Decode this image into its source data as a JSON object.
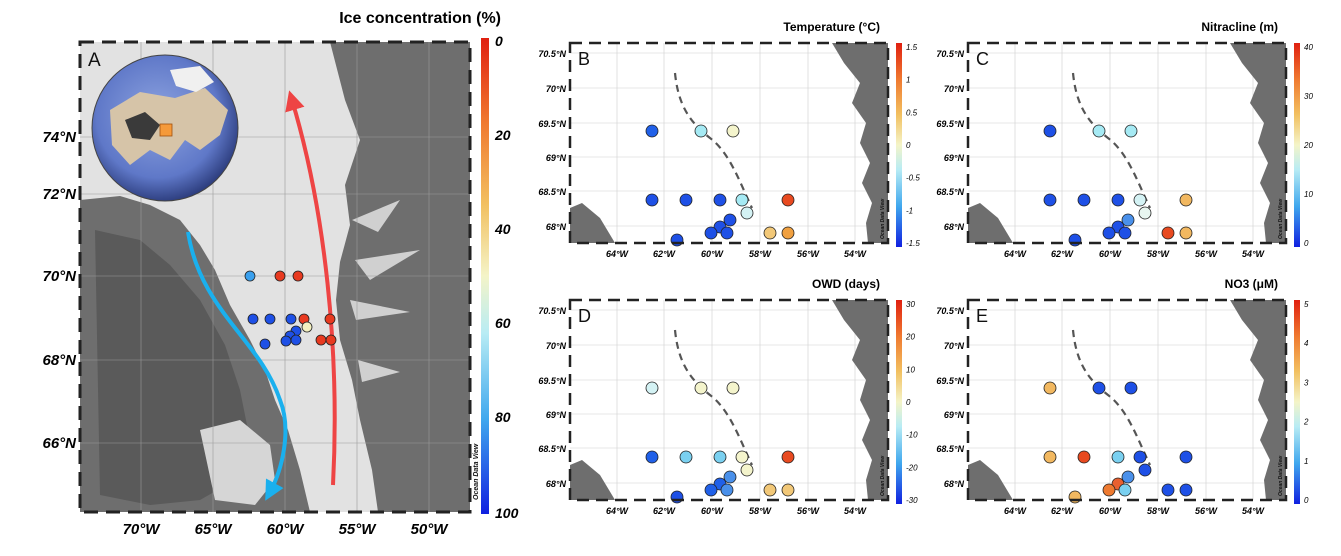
{
  "colors": {
    "cold": "#1e50e6",
    "mid": "#9ee6f0",
    "warm": "#e84020",
    "arrow_red": "#ee4444",
    "arrow_blue": "#1ab0ee",
    "land": "#6e6e6e",
    "ice": "#e4e4e4",
    "frame": "#222222"
  },
  "panelA": {
    "label": "A",
    "colorbar_title": "Ice concentration (%)",
    "colorbar_ticks": [
      "0",
      "20",
      "40",
      "60",
      "80",
      "100"
    ],
    "watermark": "Ocean Data View",
    "lat_labels": [
      "74°N",
      "72°N",
      "70°N",
      "68°N",
      "66°N"
    ],
    "lon_labels": [
      "70°W",
      "65°W",
      "60°W",
      "55°W",
      "50°W"
    ],
    "inset": "globe-location-inset"
  },
  "panels": [
    {
      "id": "B",
      "label": "B",
      "title": "Temperature (°C)",
      "colorbar_ticks": [
        "1.5",
        "1",
        "0.5",
        "0",
        "-0.5",
        "-1",
        "-1.5"
      ],
      "watermark": "Ocean Data View",
      "lat_labels": [
        "70.5°N",
        "70°N",
        "69.5°N",
        "69°N",
        "68.5°N",
        "68°N"
      ],
      "lon_labels": [
        "64°W",
        "62°W",
        "60°W",
        "58°W",
        "56°W",
        "54°W"
      ]
    },
    {
      "id": "C",
      "label": "C",
      "title": "Nitracline (m)",
      "colorbar_ticks": [
        "40",
        "30",
        "20",
        "10",
        "0"
      ],
      "watermark": "Ocean Data View",
      "lat_labels": [
        "70.5°N",
        "70°N",
        "69.5°N",
        "69°N",
        "68.5°N",
        "68°N"
      ],
      "lon_labels": [
        "64°W",
        "62°W",
        "60°W",
        "58°W",
        "56°W",
        "54°W"
      ]
    },
    {
      "id": "D",
      "label": "D",
      "title": "OWD (days)",
      "colorbar_ticks": [
        "30",
        "20",
        "10",
        "0",
        "-10",
        "-20",
        "-30"
      ],
      "watermark": "Ocean Data View",
      "lat_labels": [
        "70.5°N",
        "70°N",
        "69.5°N",
        "69°N",
        "68.5°N",
        "68°N"
      ],
      "lon_labels": [
        "64°W",
        "62°W",
        "60°W",
        "58°W",
        "56°W",
        "54°W"
      ]
    },
    {
      "id": "E",
      "label": "E",
      "title": "NO3 (μM)",
      "colorbar_ticks": [
        "5",
        "4",
        "3",
        "2",
        "1",
        "0"
      ],
      "watermark": "Ocean Data View",
      "lat_labels": [
        "70.5°N",
        "70°N",
        "69.5°N",
        "69°N",
        "68.5°N",
        "68°N"
      ],
      "lon_labels": [
        "64°W",
        "62°W",
        "60°W",
        "58°W",
        "56°W",
        "54°W"
      ]
    }
  ]
}
